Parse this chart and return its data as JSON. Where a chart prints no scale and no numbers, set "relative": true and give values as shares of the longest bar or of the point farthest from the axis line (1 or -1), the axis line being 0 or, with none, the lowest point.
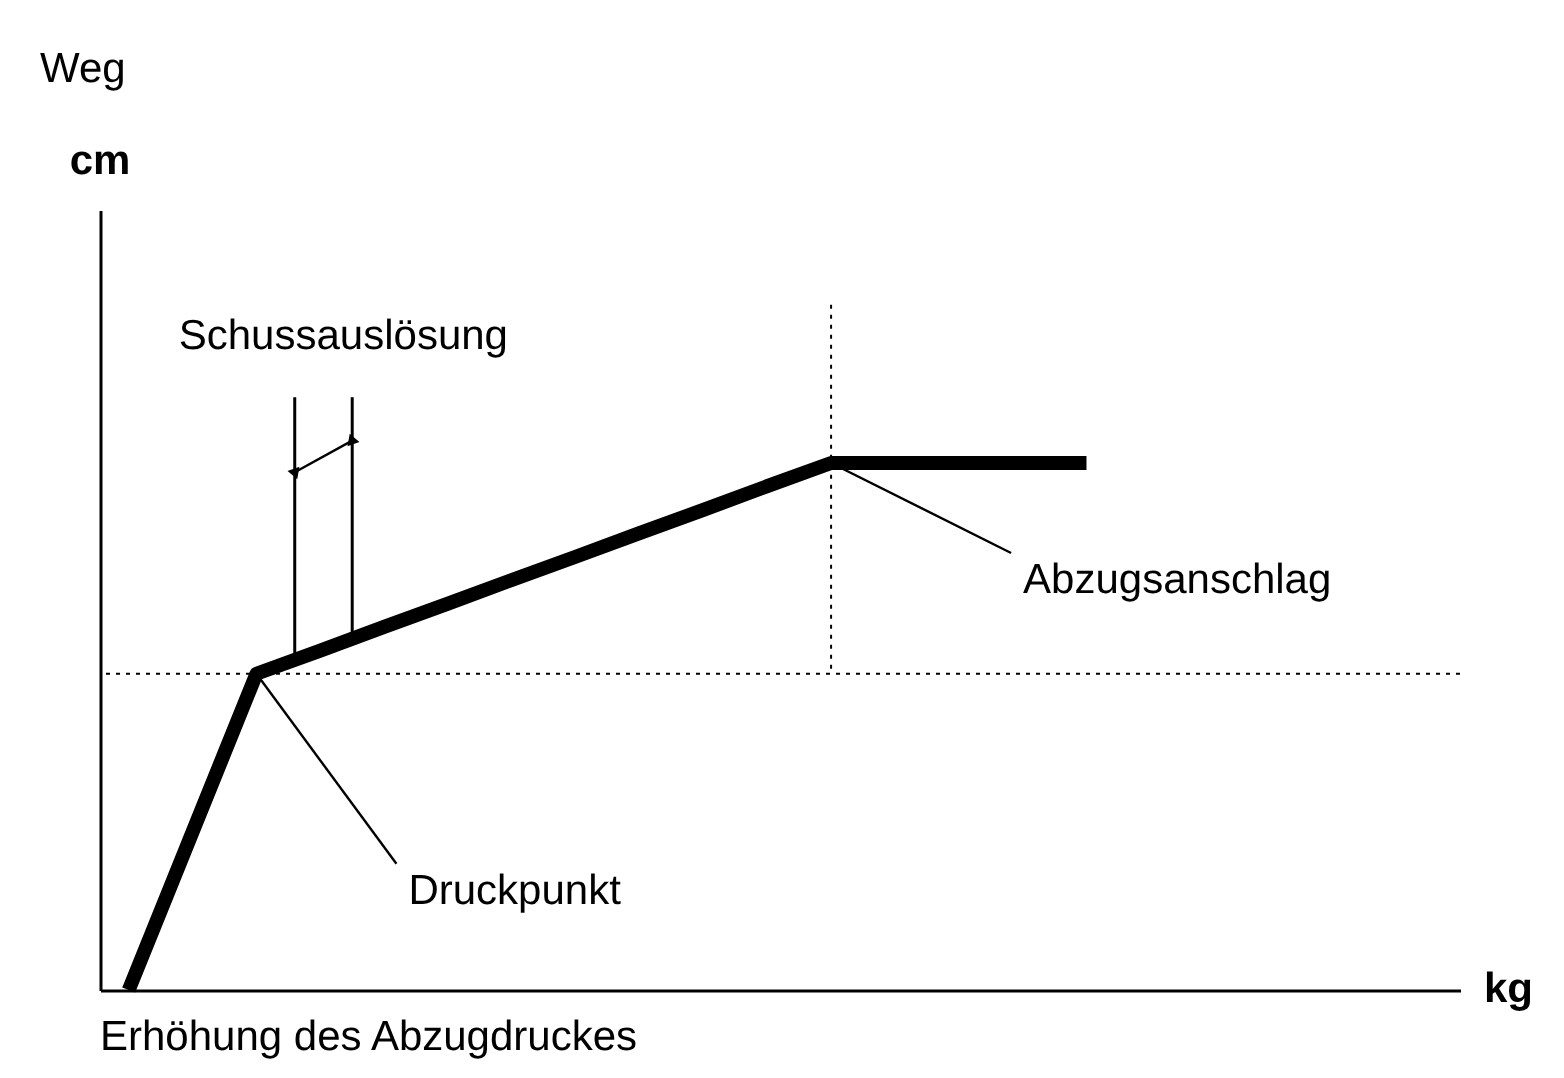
{
  "chart_data": {
    "type": "line",
    "relative": true,
    "categories": [
      null,
      null,
      null,
      null,
      null,
      null,
      null,
      null,
      null,
      null,
      null,
      null,
      null,
      null,
      null,
      null
    ],
    "series": [
      {
        "color": "#000000",
        "values": [
          0,
          0.3,
          0.6,
          0.644,
          0.689,
          0.733,
          0.778,
          0.822,
          0.867,
          0.911,
          0.956,
          1,
          1,
          1,
          1,
          1
        ]
      }
    ],
    "line_style": "solid",
    "marker": "none",
    "ref_lines": [
      {
        "axis": "y",
        "value": 0.6,
        "line_style": "dotted"
      }
    ],
    "annotations": [
      "Weg",
      "cm",
      "kg",
      "Erhöhung des Abzugdruckes",
      "Schussauslösung",
      "Druckpunkt",
      "Abzugsanschlag"
    ]
  }
}
